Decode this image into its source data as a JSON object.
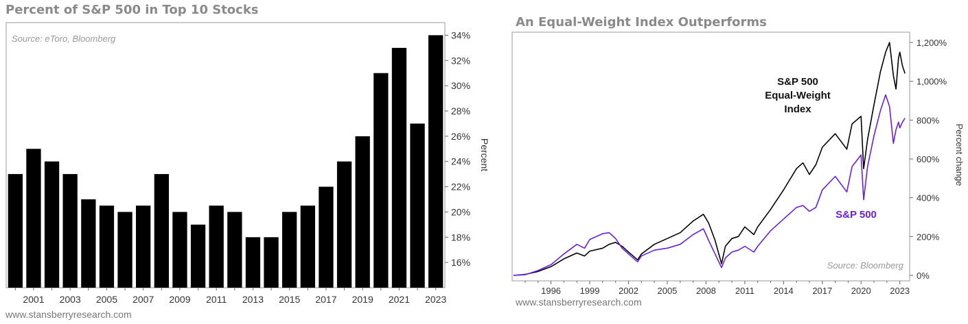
{
  "chart_data": [
    {
      "type": "bar",
      "title": "Percent of S&P 500 in Top 10 Stocks",
      "source": "Source: eToro, Bloomberg",
      "ylabel": "Percent",
      "credit": "www.stansberryresearch.com",
      "ylim": [
        14,
        35
      ],
      "yticks": [
        "16%",
        "18%",
        "20%",
        "22%",
        "24%",
        "26%",
        "28%",
        "30%",
        "32%",
        "34%"
      ],
      "ytick_values": [
        16,
        18,
        20,
        22,
        24,
        26,
        28,
        30,
        32,
        34
      ],
      "categories": [
        "2000",
        "2001",
        "2002",
        "2003",
        "2004",
        "2005",
        "2006",
        "2007",
        "2008",
        "2009",
        "2010",
        "2011",
        "2012",
        "2013",
        "2014",
        "2015",
        "2016",
        "2017",
        "2018",
        "2019",
        "2020",
        "2021",
        "2022",
        "2023"
      ],
      "xtick_labels": [
        "2001",
        "2003",
        "2005",
        "2007",
        "2009",
        "2011",
        "2013",
        "2015",
        "2017",
        "2019",
        "2021",
        "2023"
      ],
      "values": [
        23,
        25,
        24,
        23,
        21,
        20.5,
        20,
        20.5,
        23,
        20,
        19,
        20.5,
        20,
        18,
        18,
        20,
        20.5,
        22,
        24,
        26,
        31,
        33,
        27,
        34
      ],
      "bar_color": "#000000",
      "grid": false
    },
    {
      "type": "line",
      "title": "An Equal-Weight Index Outperforms",
      "source": "Source: Bloomberg",
      "ylabel": "Percent change",
      "credit": "www.stansberryresearch.com",
      "ylim": [
        0,
        1200
      ],
      "yticks": [
        "0%",
        "200%",
        "400%",
        "600%",
        "800%",
        "1,000%",
        "1,200%"
      ],
      "ytick_values": [
        0,
        200,
        400,
        600,
        800,
        1000,
        1200
      ],
      "xlim": [
        1993.1,
        2023.6
      ],
      "xtick_labels": [
        "1996",
        "1999",
        "2002",
        "2005",
        "2008",
        "2011",
        "2014",
        "2017",
        "2020",
        "2023"
      ],
      "xtick_values": [
        1996,
        1999,
        2002,
        2005,
        2008,
        2011,
        2014,
        2017,
        2020,
        2023
      ],
      "grid": false,
      "series": [
        {
          "name": "S&P 500 Equal-Weight Index",
          "label_lines": [
            "S&P 500",
            "Equal-Weight",
            "Index"
          ],
          "color": "#000000",
          "x": [
            1993.1,
            1994.0,
            1995.0,
            1996.0,
            1997.0,
            1998.0,
            1998.6,
            1999.0,
            2000.0,
            2000.5,
            2001.0,
            2001.5,
            2002.0,
            2002.7,
            2003.0,
            2004.0,
            2005.0,
            2006.0,
            2007.0,
            2007.8,
            2008.2,
            2008.7,
            2009.2,
            2009.5,
            2010.0,
            2010.5,
            2011.0,
            2011.7,
            2012.0,
            2013.0,
            2014.0,
            2015.0,
            2015.5,
            2016.0,
            2016.5,
            2017.0,
            2018.0,
            2018.9,
            2019.3,
            2020.0,
            2020.2,
            2020.5,
            2021.0,
            2021.5,
            2021.9,
            2022.2,
            2022.5,
            2022.7,
            2022.9,
            2023.0,
            2023.2,
            2023.4
          ],
          "values": [
            0,
            5,
            20,
            45,
            85,
            115,
            100,
            125,
            140,
            160,
            170,
            150,
            120,
            80,
            110,
            160,
            190,
            220,
            280,
            315,
            270,
            180,
            60,
            150,
            190,
            200,
            250,
            210,
            250,
            340,
            440,
            550,
            580,
            520,
            570,
            660,
            730,
            650,
            780,
            820,
            550,
            700,
            880,
            1050,
            1150,
            1200,
            1030,
            960,
            1120,
            1150,
            1080,
            1040
          ]
        },
        {
          "name": "S&P 500",
          "label_lines": [
            "S&P 500"
          ],
          "color": "#6a1fe0",
          "x": [
            1993.1,
            1994.0,
            1995.0,
            1996.0,
            1997.0,
            1998.0,
            1998.6,
            1999.0,
            2000.0,
            2000.5,
            2001.0,
            2001.5,
            2002.0,
            2002.7,
            2003.0,
            2004.0,
            2005.0,
            2006.0,
            2007.0,
            2007.8,
            2008.2,
            2008.7,
            2009.2,
            2009.5,
            2010.0,
            2010.5,
            2011.0,
            2011.7,
            2012.0,
            2013.0,
            2014.0,
            2015.0,
            2015.5,
            2016.0,
            2016.5,
            2017.0,
            2018.0,
            2018.9,
            2019.3,
            2020.0,
            2020.2,
            2020.5,
            2021.0,
            2021.5,
            2021.9,
            2022.2,
            2022.5,
            2022.7,
            2022.9,
            2023.0,
            2023.2,
            2023.4
          ],
          "values": [
            0,
            3,
            25,
            55,
            110,
            160,
            140,
            185,
            215,
            220,
            190,
            140,
            110,
            70,
            100,
            130,
            140,
            160,
            210,
            240,
            180,
            110,
            40,
            90,
            120,
            130,
            150,
            120,
            150,
            230,
            290,
            350,
            360,
            330,
            350,
            440,
            510,
            430,
            560,
            620,
            390,
            560,
            720,
            850,
            930,
            870,
            680,
            750,
            790,
            760,
            790,
            810
          ]
        }
      ]
    }
  ]
}
